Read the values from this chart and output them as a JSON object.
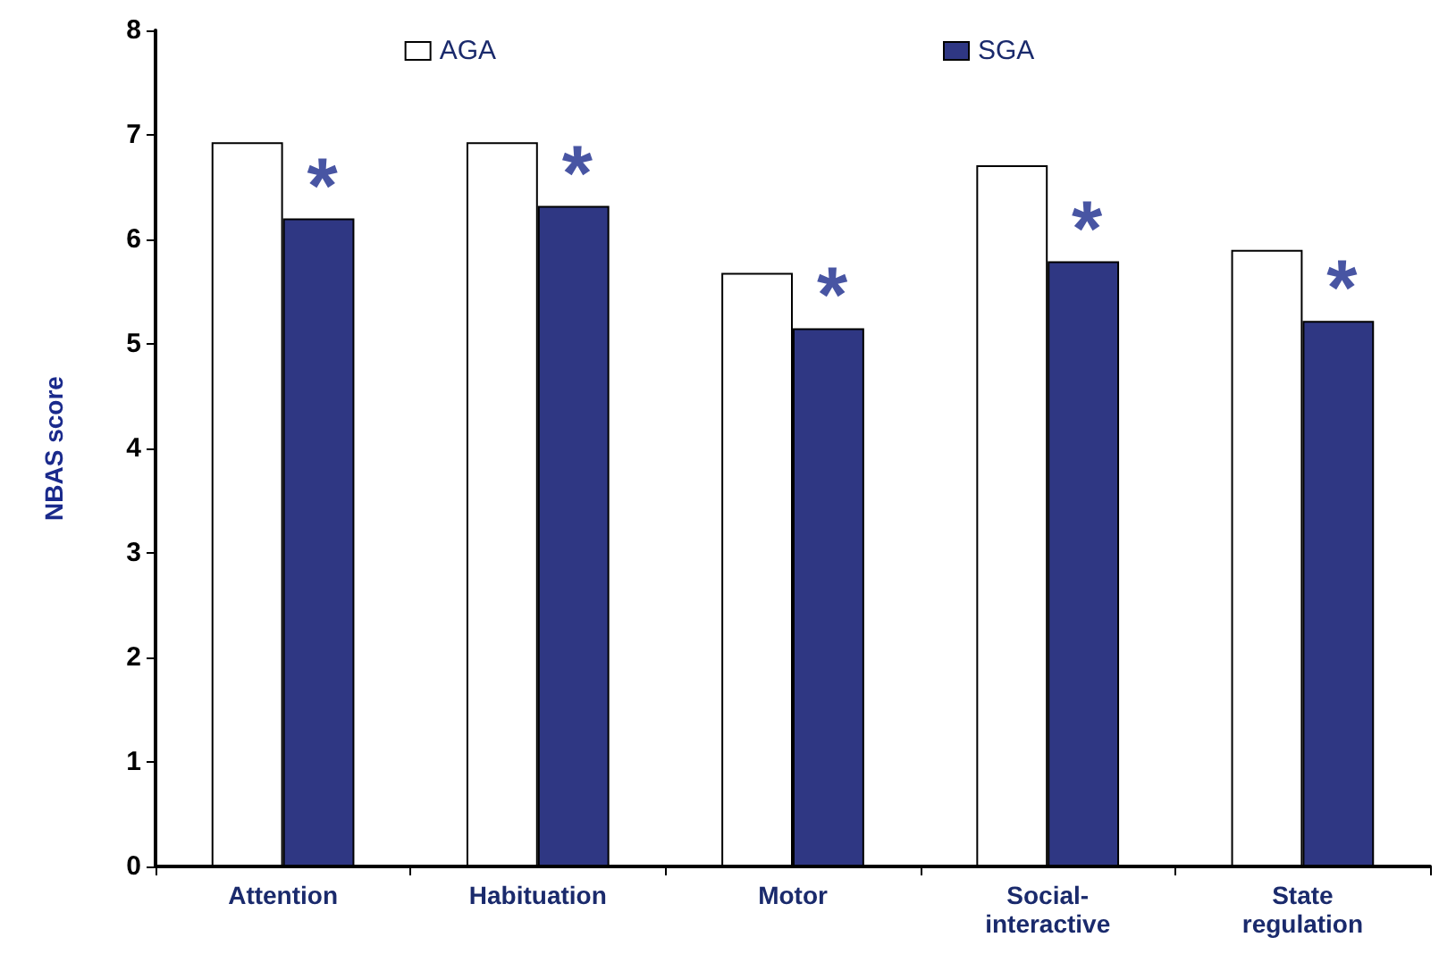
{
  "chart_data": {
    "type": "bar",
    "ylabel": "NBAS score",
    "categories": [
      "Attention",
      "Habituation",
      "Motor",
      "Social-\ninteractive",
      "State\nregulation"
    ],
    "series": [
      {
        "name": "AGA",
        "color": "#ffffff",
        "values": [
          6.93,
          6.93,
          5.68,
          6.71,
          5.9
        ]
      },
      {
        "name": "SGA",
        "color": "#2f3783",
        "values": [
          6.2,
          6.32,
          5.15,
          5.79,
          5.22
        ]
      }
    ],
    "ylim": [
      0,
      8
    ],
    "yticks": [
      0,
      1,
      2,
      3,
      4,
      5,
      6,
      7,
      8
    ],
    "grid": false,
    "legend": "top",
    "annotations": [
      {
        "text": "*",
        "x": "Attention",
        "y": 6.2
      },
      {
        "text": "*",
        "x": "Habituation",
        "y": 6.32
      },
      {
        "text": "*",
        "x": "Motor",
        "y": 5.15
      },
      {
        "text": "*",
        "x": "Social-\ninteractive",
        "y": 5.79
      },
      {
        "text": "*",
        "x": "State\nregulation",
        "y": 5.22
      }
    ]
  }
}
